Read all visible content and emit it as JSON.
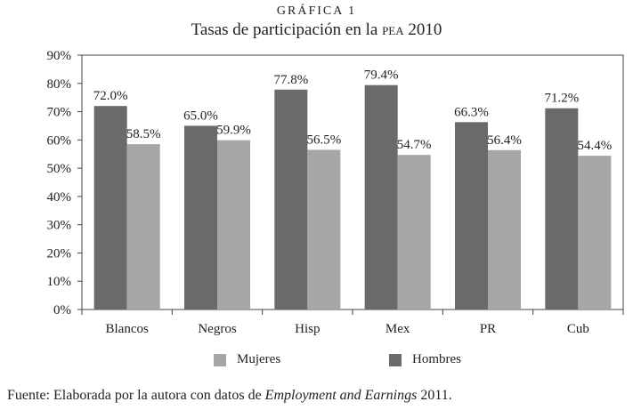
{
  "figure": {
    "label": "GRÁFICA 1",
    "title_main": "Tasas de participación en la",
    "title_abbr": "PEA",
    "title_year": "2010"
  },
  "source": {
    "prefix": "Fuente: Elaborada por la autora con datos de",
    "publication": "Employment and Earnings",
    "year": "2011."
  },
  "colors": {
    "hombres": "#6a6a6c",
    "mujeres": "#a6a6a8",
    "axis": "#444444"
  },
  "chart_data": {
    "type": "bar",
    "categories": [
      "Blancos",
      "Negros",
      "Hisp",
      "Mex",
      "PR",
      "Cub"
    ],
    "series": [
      {
        "name": "Hombres",
        "values": [
          72.0,
          65.0,
          77.8,
          79.4,
          66.3,
          71.2
        ],
        "labels": [
          "72.0%",
          "65.0%",
          "77.8%",
          "79.4%",
          "66.3%",
          "71.2%"
        ]
      },
      {
        "name": "Mujeres",
        "values": [
          58.5,
          59.9,
          56.5,
          54.7,
          56.4,
          54.4
        ],
        "labels": [
          "58.5%",
          "59.9%",
          "56.5%",
          "54.7%",
          "56.4%",
          "54.4%"
        ]
      }
    ],
    "y_ticks": [
      "0%",
      "10%",
      "20%",
      "30%",
      "40%",
      "50%",
      "60%",
      "70%",
      "80%",
      "90%"
    ],
    "ylim": [
      0,
      90
    ],
    "grid": false,
    "legend": {
      "placement": "bottom",
      "order": [
        "Mujeres",
        "Hombres"
      ]
    }
  }
}
